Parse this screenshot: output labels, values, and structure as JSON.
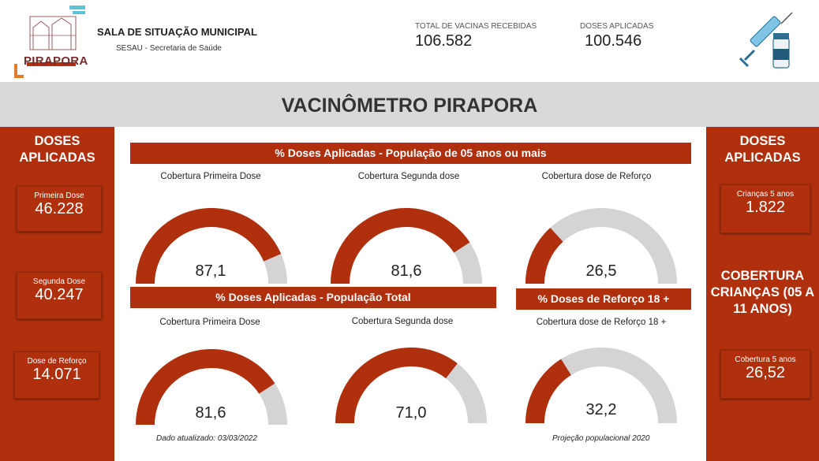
{
  "header": {
    "logo_text": "PIRAPORA",
    "title": "SALA DE SITUAÇÃO MUNICIPAL",
    "subtitle": "SESAU - Secretaria de Saúde",
    "kpis": [
      {
        "label": "TOTAL DE VACINAS RECEBIDAS",
        "value": "106.582"
      },
      {
        "label": "DOSES APLICADAS",
        "value": "100.546"
      }
    ]
  },
  "title": "VACINÔMETRO PIRAPORA",
  "left_panel": {
    "heading": "DOSES APLICADAS",
    "cards": [
      {
        "label": "Primeira Dose",
        "value": "46.228"
      },
      {
        "label": "Segunda Dose",
        "value": "40.247"
      },
      {
        "label": "Dose de Reforço",
        "value": "14.071"
      }
    ]
  },
  "right_panel": {
    "heading": "DOSES APLICADAS",
    "card_top": {
      "label": "Crianças 5 anos",
      "value": "1.822"
    },
    "heading2": "COBERTURA CRIANÇAS (05 A 11 ANOS)",
    "card_bottom": {
      "label": "Cobertura 5 anos",
      "value": "26,52"
    }
  },
  "center": {
    "banner1": "% Doses Aplicadas - População de 05 anos ou mais",
    "banner2": "% Doses Aplicadas - População Total",
    "banner3": "% Doses de Reforço 18 +",
    "gauges": [
      {
        "title": "Cobertura Primeira Dose",
        "value": 87.1,
        "display": "87,1"
      },
      {
        "title": "Cobertura Segunda dose",
        "value": 81.6,
        "display": "81,6"
      },
      {
        "title": "Cobertura dose de Reforço",
        "value": 26.5,
        "display": "26,5"
      },
      {
        "title": "Cobertura Primeira Dose",
        "value": 81.6,
        "display": "81,6"
      },
      {
        "title": "Cobertura Segunda dose",
        "value": 71.0,
        "display": "71,0"
      },
      {
        "title": "Cobertura dose de Reforço 18 +",
        "value": 32.2,
        "display": "32,2"
      }
    ],
    "note_left": "Dado atualizado: 03/03/2022",
    "note_right": "Projeção populacional 2020"
  },
  "colors": {
    "accent": "#b02f0d",
    "gauge_bg": "#d4d4d4",
    "band": "#d9d9d9"
  }
}
